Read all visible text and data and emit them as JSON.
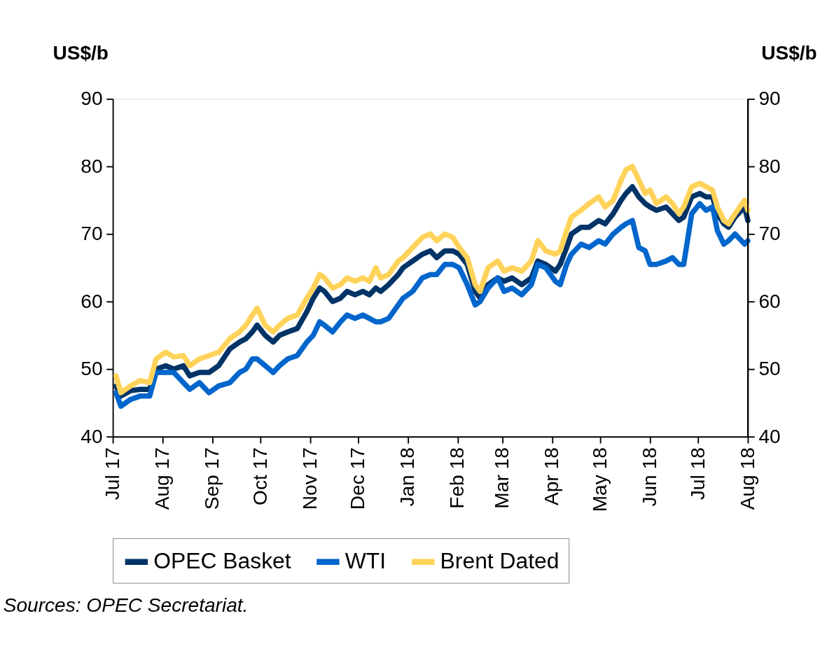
{
  "chart_data": {
    "type": "line",
    "x": [
      "2017-07-03",
      "2017-07-06",
      "2017-07-12",
      "2017-07-18",
      "2017-07-24",
      "2017-07-28",
      "2017-08-03",
      "2017-08-08",
      "2017-08-14",
      "2017-08-18",
      "2017-08-24",
      "2017-08-30",
      "2017-09-05",
      "2017-09-12",
      "2017-09-18",
      "2017-09-22",
      "2017-09-26",
      "2017-09-29",
      "2017-10-04",
      "2017-10-09",
      "2017-10-13",
      "2017-10-18",
      "2017-10-24",
      "2017-10-30",
      "2017-11-03",
      "2017-11-07",
      "2017-11-10",
      "2017-11-15",
      "2017-11-20",
      "2017-11-24",
      "2017-11-29",
      "2017-12-04",
      "2017-12-08",
      "2017-12-12",
      "2017-12-15",
      "2017-12-20",
      "2017-12-26",
      "2017-12-29",
      "2018-01-04",
      "2018-01-10",
      "2018-01-15",
      "2018-01-19",
      "2018-01-24",
      "2018-01-29",
      "2018-02-02",
      "2018-02-07",
      "2018-02-12",
      "2018-02-15",
      "2018-02-20",
      "2018-02-26",
      "2018-03-02",
      "2018-03-07",
      "2018-03-13",
      "2018-03-19",
      "2018-03-23",
      "2018-03-28",
      "2018-04-03",
      "2018-04-06",
      "2018-04-10",
      "2018-04-13",
      "2018-04-19",
      "2018-04-24",
      "2018-04-30",
      "2018-05-04",
      "2018-05-09",
      "2018-05-14",
      "2018-05-17",
      "2018-05-21",
      "2018-05-25",
      "2018-05-29",
      "2018-06-01",
      "2018-06-05",
      "2018-06-11",
      "2018-06-15",
      "2018-06-19",
      "2018-06-22",
      "2018-06-27",
      "2018-07-02",
      "2018-07-06",
      "2018-07-10",
      "2018-07-13",
      "2018-07-17",
      "2018-07-20",
      "2018-07-24",
      "2018-07-30",
      "2018-08-01"
    ],
    "series": [
      {
        "name": "OPEC Basket",
        "color": "#003366",
        "values": [
          47.5,
          46.0,
          46.8,
          47.0,
          47.0,
          50.0,
          50.5,
          50.0,
          50.5,
          49.0,
          49.5,
          49.5,
          50.5,
          53.0,
          54.0,
          54.5,
          55.5,
          56.5,
          55.0,
          54.0,
          55.0,
          55.5,
          56.0,
          58.5,
          60.5,
          62.0,
          61.5,
          60.0,
          60.5,
          61.5,
          61.0,
          61.5,
          61.0,
          62.0,
          61.5,
          62.5,
          64.0,
          65.0,
          66.0,
          67.0,
          67.5,
          66.5,
          67.5,
          67.5,
          67.0,
          65.5,
          61.5,
          60.5,
          62.5,
          63.5,
          63.0,
          63.5,
          62.5,
          63.5,
          66.0,
          65.5,
          64.5,
          65.5,
          68.0,
          70.0,
          71.0,
          71.0,
          72.0,
          71.5,
          73.0,
          75.0,
          76.0,
          77.0,
          75.5,
          74.5,
          74.0,
          73.5,
          74.0,
          73.0,
          72.0,
          72.5,
          75.5,
          76.0,
          75.5,
          75.5,
          73.0,
          71.5,
          71.0,
          72.5,
          74.0,
          72.0
        ]
      },
      {
        "name": "WTI",
        "color": "#0066cc",
        "values": [
          46.5,
          44.5,
          45.5,
          46.0,
          46.0,
          49.5,
          49.5,
          49.5,
          48.0,
          47.0,
          48.0,
          46.5,
          47.5,
          48.0,
          49.5,
          50.0,
          51.5,
          51.5,
          50.5,
          49.5,
          50.5,
          51.5,
          52.0,
          54.0,
          55.0,
          57.0,
          56.5,
          55.5,
          57.0,
          58.0,
          57.5,
          58.0,
          57.5,
          57.0,
          57.0,
          57.5,
          59.5,
          60.5,
          61.5,
          63.5,
          64.0,
          64.0,
          65.5,
          65.5,
          65.0,
          62.5,
          59.5,
          60.0,
          62.0,
          63.5,
          61.5,
          62.0,
          61.0,
          62.5,
          65.5,
          65.0,
          63.0,
          62.5,
          65.5,
          67.0,
          68.5,
          68.0,
          69.0,
          68.5,
          70.0,
          71.0,
          71.5,
          72.0,
          68.0,
          67.5,
          65.5,
          65.5,
          66.0,
          66.5,
          65.5,
          65.5,
          73.0,
          74.5,
          73.5,
          74.0,
          70.5,
          68.5,
          69.0,
          70.0,
          68.5,
          69.0
        ]
      },
      {
        "name": "Brent Dated",
        "color": "#ffd35a",
        "values": [
          49.0,
          46.5,
          47.5,
          48.3,
          48.0,
          51.5,
          52.5,
          51.8,
          52.0,
          50.5,
          51.5,
          52.0,
          52.5,
          54.5,
          55.5,
          56.5,
          58.0,
          59.0,
          56.5,
          55.5,
          56.5,
          57.5,
          58.0,
          60.5,
          62.0,
          64.0,
          63.5,
          62.0,
          62.5,
          63.5,
          63.0,
          63.5,
          63.0,
          65.0,
          63.5,
          64.0,
          66.0,
          66.5,
          68.0,
          69.5,
          70.0,
          69.0,
          70.0,
          69.5,
          68.0,
          66.5,
          62.5,
          61.5,
          65.0,
          66.0,
          64.5,
          65.0,
          64.5,
          66.0,
          69.0,
          67.5,
          67.0,
          67.5,
          70.5,
          72.5,
          73.5,
          74.5,
          75.5,
          74.0,
          75.0,
          78.0,
          79.5,
          80.0,
          78.0,
          76.0,
          76.5,
          74.5,
          75.5,
          74.5,
          73.0,
          74.0,
          77.0,
          77.5,
          77.0,
          76.5,
          74.0,
          72.0,
          71.5,
          73.0,
          75.0,
          73.5
        ]
      }
    ],
    "xlim": [
      "2017-07-01",
      "2018-08-01"
    ],
    "xticks": [
      {
        "value": "2017-07-01",
        "label": "Jul 17"
      },
      {
        "value": "2017-08-01",
        "label": "Aug 17"
      },
      {
        "value": "2017-09-01",
        "label": "Sep 17"
      },
      {
        "value": "2017-10-01",
        "label": "Oct 17"
      },
      {
        "value": "2017-11-01",
        "label": "Nov 17"
      },
      {
        "value": "2017-12-01",
        "label": "Dec 17"
      },
      {
        "value": "2018-01-01",
        "label": "Jan 18"
      },
      {
        "value": "2018-02-01",
        "label": "Feb 18"
      },
      {
        "value": "2018-03-01",
        "label": "Mar 18"
      },
      {
        "value": "2018-04-01",
        "label": "Apr 18"
      },
      {
        "value": "2018-05-01",
        "label": "May 18"
      },
      {
        "value": "2018-06-01",
        "label": "Jun 18"
      },
      {
        "value": "2018-07-01",
        "label": "Jul 18"
      },
      {
        "value": "2018-08-01",
        "label": "Aug 18"
      }
    ],
    "ylim": [
      40,
      90
    ],
    "yticks": [
      40,
      50,
      60,
      70,
      80,
      90
    ],
    "y2lim": [
      40,
      90
    ],
    "y2ticks": [
      40,
      50,
      60,
      70,
      80,
      90
    ],
    "ylabel": "US$/b",
    "y2label": "US$/b",
    "grid": false,
    "legend": "bottom",
    "marker": "none",
    "line_style": "solid",
    "annotations": [
      "Sources: OPEC Secretariat."
    ]
  }
}
